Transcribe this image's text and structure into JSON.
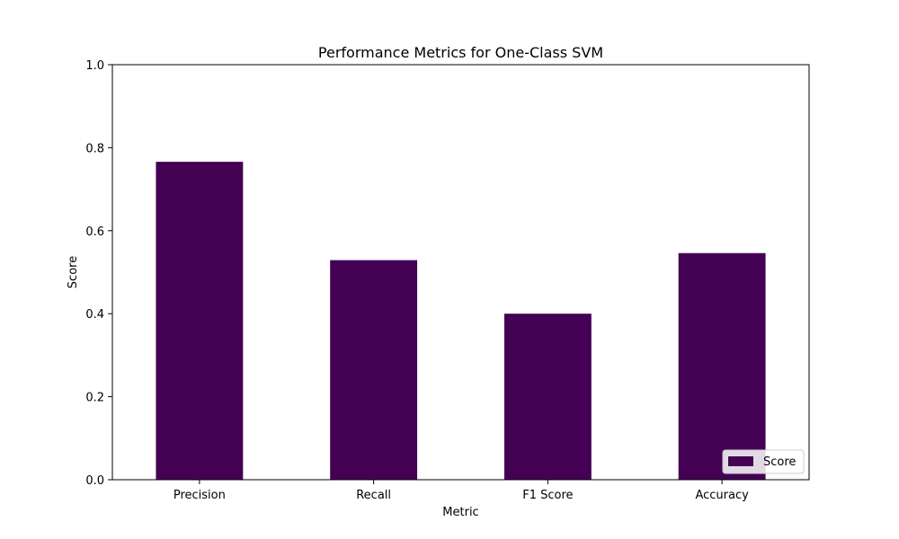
{
  "chart_data": {
    "type": "bar",
    "title": "Performance Metrics for One-Class SVM",
    "xlabel": "Metric",
    "ylabel": "Score",
    "categories": [
      "Precision",
      "Recall",
      "F1 Score",
      "Accuracy"
    ],
    "series": [
      {
        "name": "Score",
        "values": [
          0.766,
          0.529,
          0.4,
          0.546
        ],
        "color": "#440154"
      }
    ],
    "ylim": [
      0,
      1.0
    ],
    "yticks": [
      "0.0",
      "0.2",
      "0.4",
      "0.6",
      "0.8",
      "1.0"
    ],
    "grid": false,
    "legend_position": "bottom-right"
  }
}
